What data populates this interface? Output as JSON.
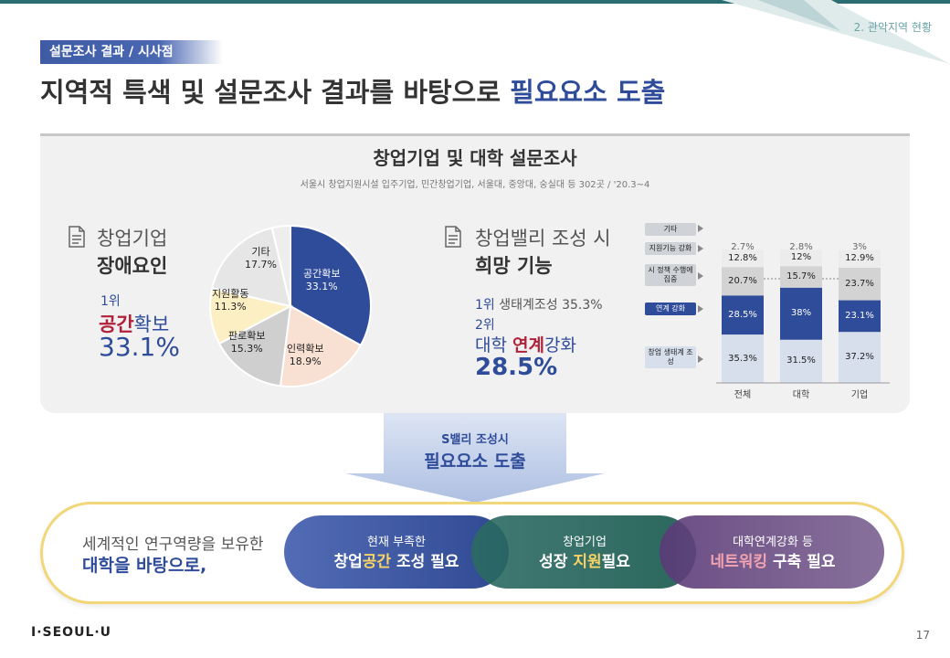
{
  "header": {
    "section": "2. 관악지역 현황",
    "tag": "설문조사 결과 / 시사점",
    "title_prefix": "지역적 특색 및 설문조사 결과를 바탕으로 ",
    "title_highlight": "필요요소 도출"
  },
  "survey": {
    "title": "창업기업 및 대학 설문조사",
    "subtitle": "서울시 창업지원시설 입주기업, 민간창업기업, 서울대, 중앙대, 숭실대 등 302곳 / '20.3~4"
  },
  "left": {
    "heading1": "창업기업",
    "heading2": "장애요인",
    "rank_label": "1위",
    "rank_item_red": "공간",
    "rank_item_rest": "확보",
    "rank_pct": "33.1%"
  },
  "pie": {
    "slices": [
      {
        "name": "공간확보",
        "label": "33.1%",
        "value": 33.1,
        "color": "#2f4c9a"
      },
      {
        "name": "인력확보",
        "label": "18.9%",
        "value": 18.9,
        "color": "#f8e0d2"
      },
      {
        "name": "판로확보",
        "label": "15.3%",
        "value": 15.3,
        "color": "#cfcfcf"
      },
      {
        "name": "지원활동",
        "label": "11.3%",
        "value": 11.3,
        "color": "#fcefc4"
      },
      {
        "name": "기타",
        "label": "17.7%",
        "value": 17.7,
        "color": "#e6e6e6"
      },
      {
        "name": "",
        "label": "",
        "value": 3.7,
        "color": "#eeeeee"
      }
    ]
  },
  "right": {
    "heading1": "창업밸리 조성 시",
    "heading2": "희망 기능",
    "rank1_label": "1위",
    "rank1_text": "생태계조성 35.3%",
    "rank2_label": "2위",
    "rank2_prefix": "대학 ",
    "rank2_red": "연계",
    "rank2_suffix": "강화",
    "rank2_pct": "28.5%"
  },
  "chart_data": {
    "type": "bar",
    "stacked": true,
    "categories": [
      "전체",
      "대학",
      "기업"
    ],
    "series": [
      {
        "name": "창업 생태계 조성",
        "values": [
          35.3,
          31.5,
          37.2
        ],
        "labels": [
          "35.3%",
          "31.5%",
          "37.2%"
        ],
        "color": "#d7dfec"
      },
      {
        "name": "연계 강화",
        "values": [
          28.5,
          38,
          23.1
        ],
        "labels": [
          "28.5%",
          "38%",
          "23.1%"
        ],
        "color": "#2f4c9a"
      },
      {
        "name": "시 정책 수행에 집중",
        "values": [
          20.7,
          15.7,
          23.7
        ],
        "labels": [
          "20.7%",
          "15.7%",
          "23.7%"
        ],
        "color": "#d3d3d3"
      },
      {
        "name": "지원기능 강화",
        "values": [
          12.8,
          12,
          12.9
        ],
        "labels": [
          "12.8%",
          "12%",
          "12.9%"
        ],
        "color": "#ececec"
      },
      {
        "name": "기타",
        "values": [
          2.7,
          2.8,
          3
        ],
        "labels": [
          "2.7%",
          "2.8%",
          "3%"
        ],
        "color": "#ffffff"
      }
    ],
    "legend": [
      "기타",
      "지원기능 강화",
      "시 정책 수행에 집중",
      "연계 강화",
      "창업 생태계 조성"
    ]
  },
  "arrow": {
    "sub": "S밸리 조성시",
    "main": "필요요소 도출"
  },
  "conclusion": {
    "line1": "세계적인 연구역량을 보유한",
    "line2": "대학을 바탕으로,",
    "items": [
      {
        "sub": "현재 부족한",
        "pre": "창업",
        "hl": "공간",
        "post": " 조성 필요",
        "accent": "#f7d463"
      },
      {
        "sub": "창업기업",
        "pre": "성장 ",
        "hl": "지원",
        "post": "필요",
        "accent": "#f7d463"
      },
      {
        "sub": "대학연계강화 등",
        "pre": "",
        "hl": "네트워킹",
        "post": " 구축 필요",
        "accent": "#f4a3b0"
      }
    ]
  },
  "footer": {
    "logo": "I·SEOUL·U",
    "page": "17"
  }
}
